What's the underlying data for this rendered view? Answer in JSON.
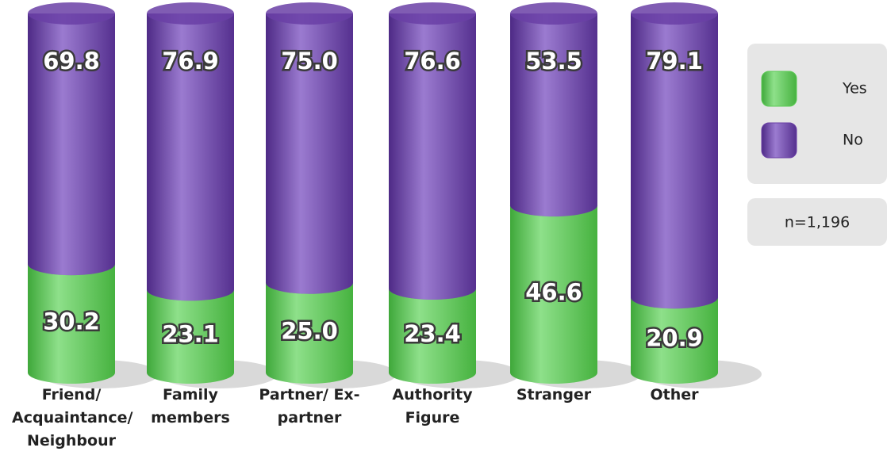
{
  "chart_data": {
    "type": "stacked-bar",
    "categories": [
      "Friend/ Acquaintance/ Neighbour",
      "Family members",
      "Partner/ Ex-partner",
      "Authority Figure",
      "Stranger",
      "Other"
    ],
    "series": [
      {
        "name": "Yes",
        "color": "#5ccb55",
        "values": [
          30.2,
          23.1,
          25.0,
          23.4,
          46.6,
          20.9
        ],
        "value_labels": [
          "30.2",
          "23.1",
          "25.0",
          "23.4",
          "46.6",
          "20.9"
        ]
      },
      {
        "name": "No",
        "color": "#6a3fa6",
        "values": [
          69.8,
          76.9,
          75.0,
          76.6,
          53.5,
          79.1
        ],
        "value_labels": [
          "69.8",
          "76.9",
          "75.0",
          "76.6",
          "53.5",
          "79.1"
        ]
      }
    ],
    "annotation": "n=1,196"
  }
}
